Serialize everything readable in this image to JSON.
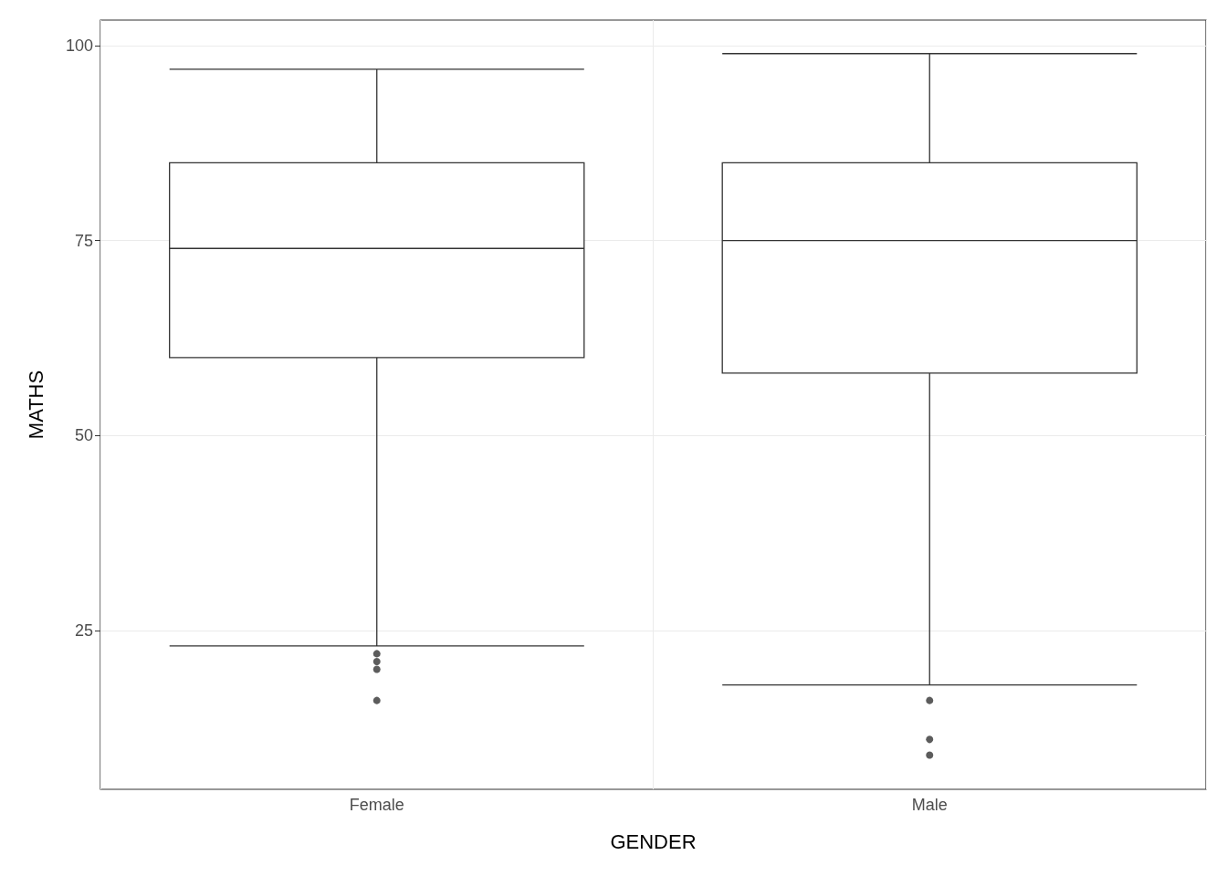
{
  "chart_data": {
    "type": "box",
    "xlabel": "GENDER",
    "ylabel": "MATHS",
    "categories": [
      "Female",
      "Male"
    ],
    "boxes": [
      {
        "low": 23,
        "q1": 60,
        "median": 74,
        "q3": 85,
        "high": 97,
        "outliers": [
          22,
          21,
          20,
          16
        ]
      },
      {
        "low": 18,
        "q1": 58,
        "median": 75,
        "q3": 85,
        "high": 99,
        "outliers": [
          16,
          11,
          9
        ]
      }
    ],
    "color": "#333333",
    "ylim": [
      4.6,
      103.3
    ],
    "yticks": [
      25,
      50,
      75,
      100
    ],
    "grid": true
  }
}
